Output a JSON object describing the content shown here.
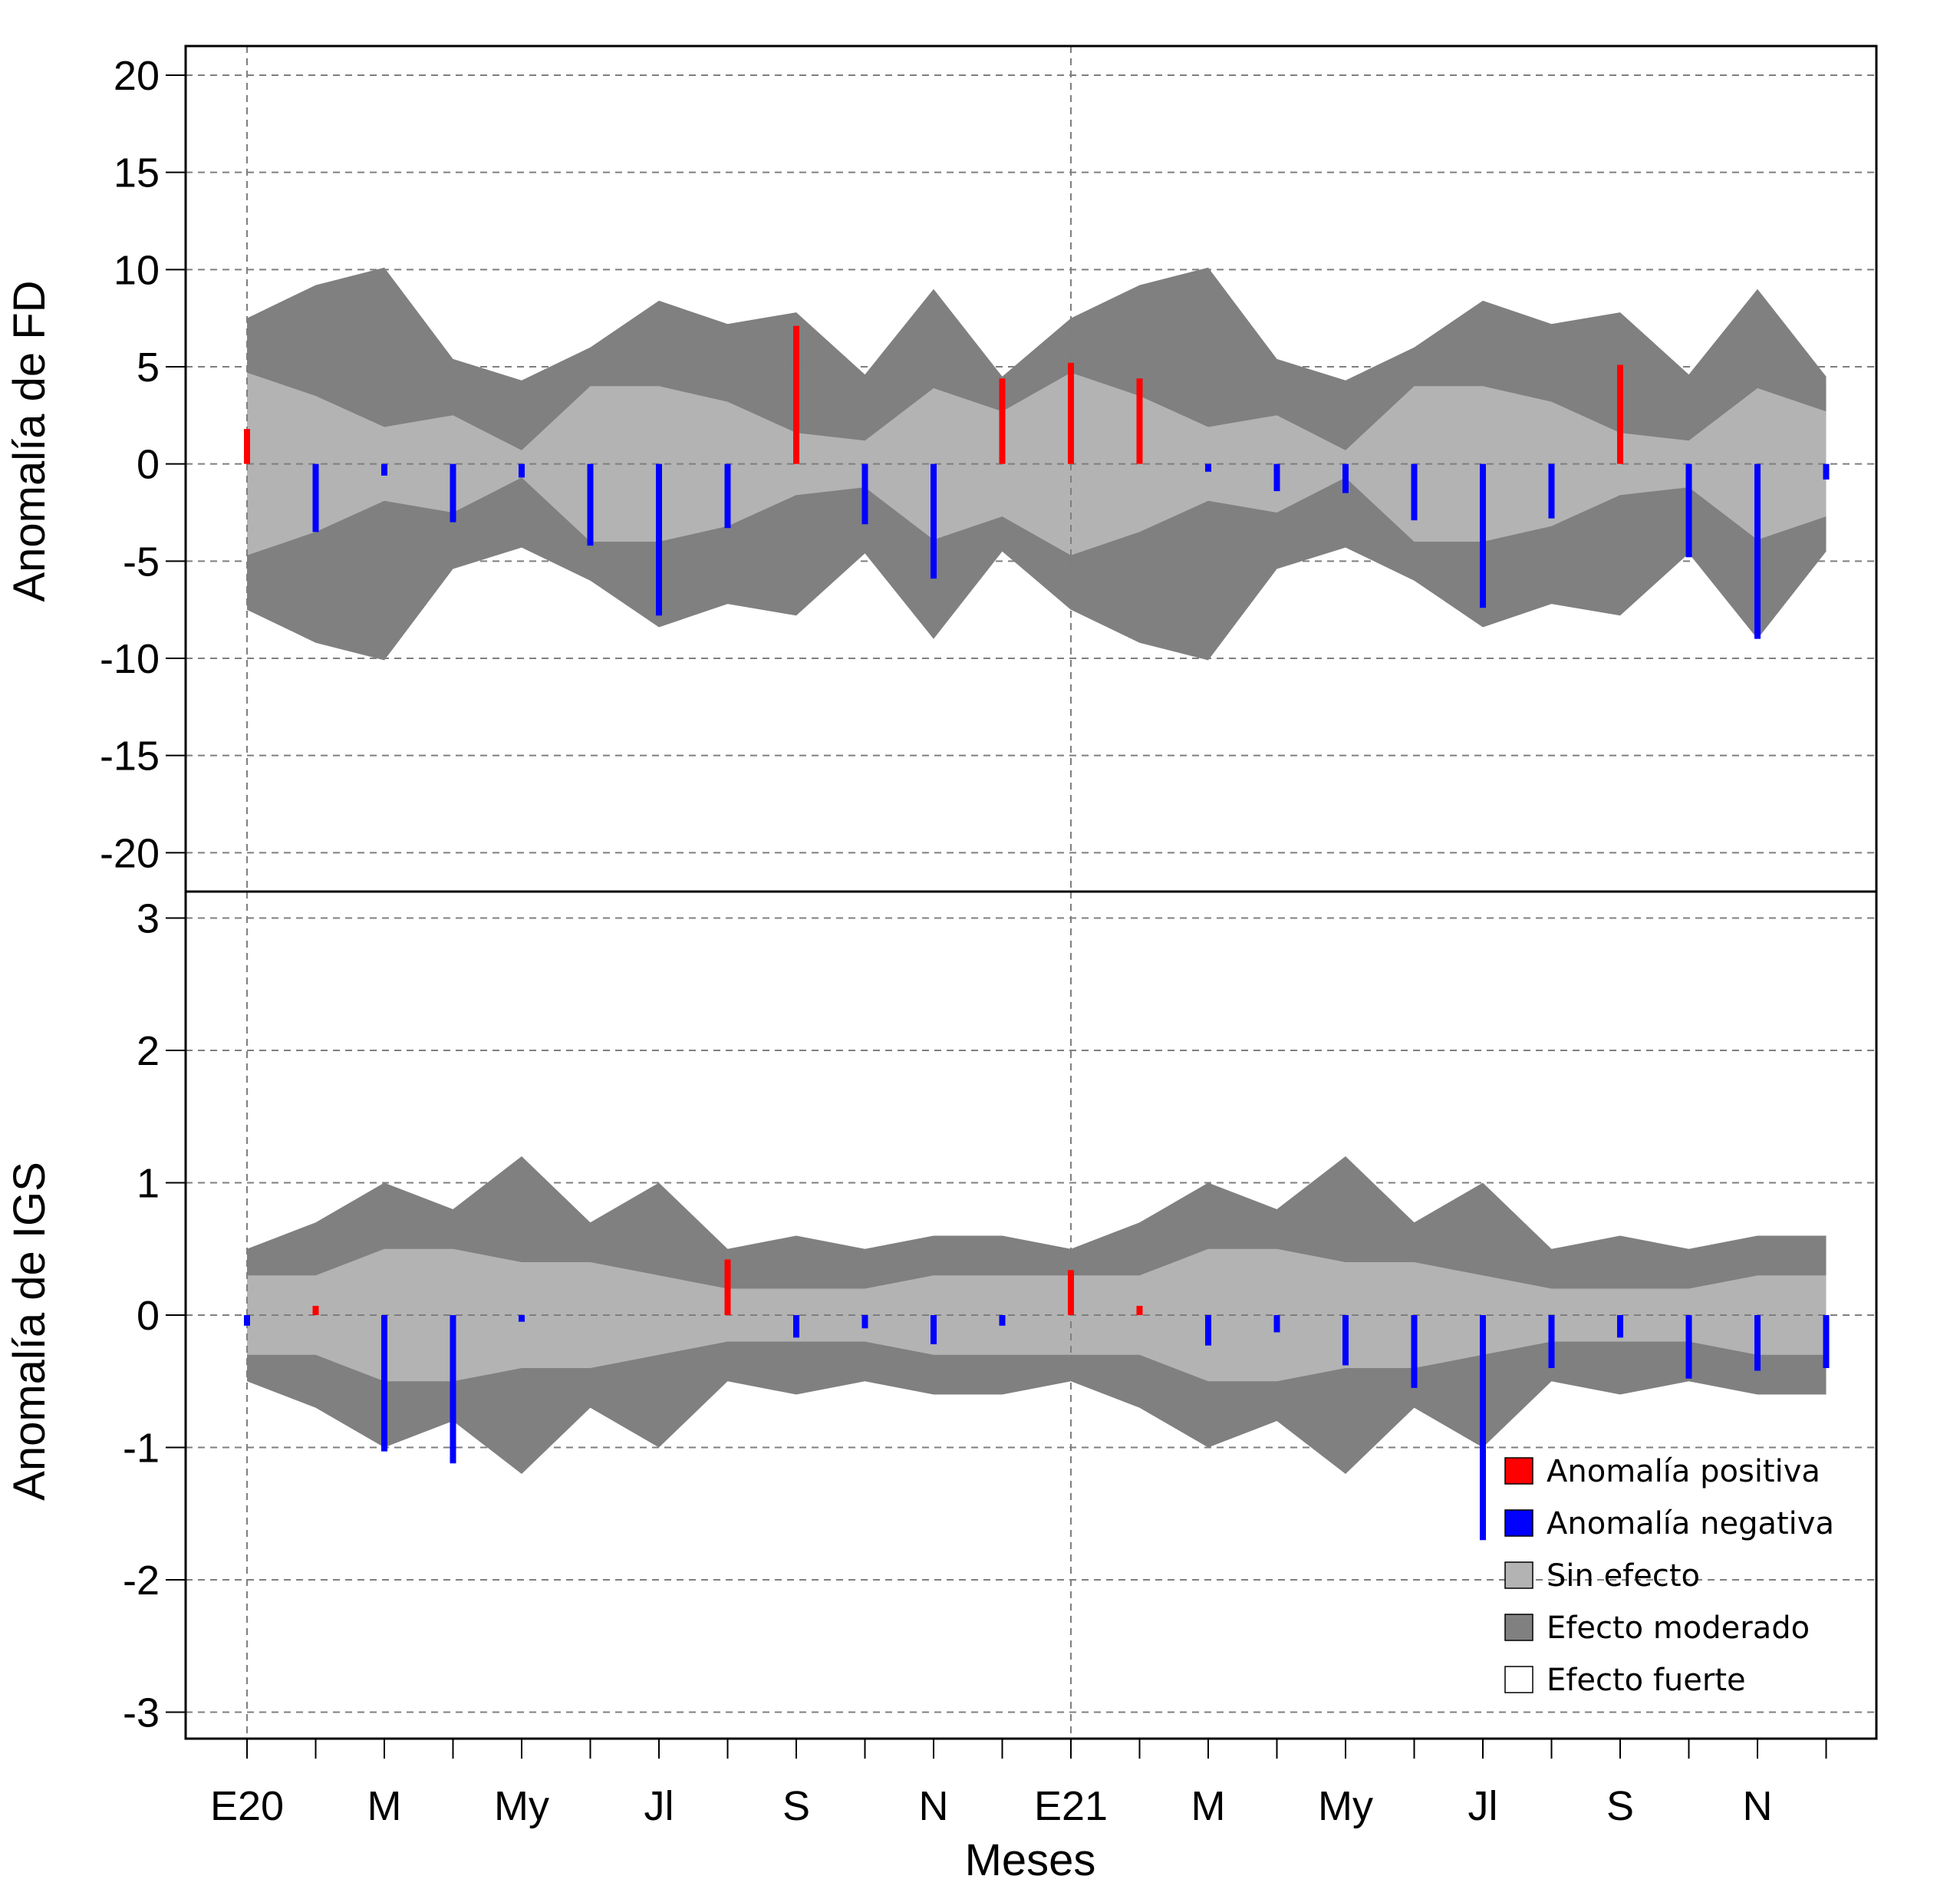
{
  "colors": {
    "positive": "#ff0000",
    "negative": "#0000ff",
    "sin_efecto": "#b3b3b3",
    "efecto_moderado": "#808080",
    "efecto_fuerte": "#ffffff",
    "grid": "#7f7f7f",
    "frame": "#000000"
  },
  "chart_data": [
    {
      "type": "bar",
      "panel": "top",
      "ylabel": "Anomalía de FD",
      "xlabel": "",
      "ylim": [
        -22,
        21.5
      ],
      "yticks": [
        -20,
        -15,
        -10,
        -5,
        0,
        5,
        10,
        15,
        20
      ],
      "ytick_labels": [
        "-20",
        "-15",
        "-10",
        "-5",
        "0",
        "5",
        "10",
        "15",
        "20"
      ],
      "grid": true,
      "n_months": 24,
      "anomaly": [
        1.8,
        -3.5,
        -0.6,
        -3.0,
        -0.7,
        -4.2,
        -7.8,
        -3.3,
        7.1,
        -3.1,
        -5.9,
        4.4,
        5.2,
        4.4,
        -0.4,
        -1.4,
        -1.5,
        -2.9,
        -7.4,
        -2.8,
        5.1,
        -4.8,
        -9.0,
        -0.8
      ],
      "band_sin_efecto": [
        4.7,
        3.5,
        1.9,
        2.5,
        0.7,
        4.0,
        4.0,
        3.2,
        1.6,
        1.2,
        3.9,
        2.7,
        4.7,
        3.5,
        1.9,
        2.5,
        0.7,
        4.0,
        4.0,
        3.2,
        1.6,
        1.2,
        3.9,
        2.7
      ],
      "band_efecto_moderado": [
        7.5,
        9.2,
        10.1,
        5.4,
        4.3,
        6.0,
        8.4,
        7.2,
        7.8,
        4.6,
        9.0,
        4.5,
        7.5,
        9.2,
        10.1,
        5.4,
        4.3,
        6.0,
        8.4,
        7.2,
        7.8,
        4.6,
        9.0,
        4.5
      ]
    },
    {
      "type": "bar",
      "panel": "bottom",
      "ylabel": "Anomalía de IGS",
      "xlabel": "Meses",
      "ylim": [
        -3.2,
        3.2
      ],
      "yticks": [
        -3,
        -2,
        -1,
        0,
        1,
        2,
        3
      ],
      "ytick_labels": [
        "-3",
        "-2",
        "-1",
        "0",
        "1",
        "2",
        "3"
      ],
      "grid": true,
      "n_months": 24,
      "anomaly": [
        -0.08,
        0.07,
        -1.03,
        -1.12,
        -0.05,
        0,
        0,
        0.42,
        -0.17,
        -0.1,
        -0.22,
        -0.08,
        0.34,
        0.07,
        -0.23,
        -0.13,
        -0.38,
        -0.55,
        -1.7,
        -0.4,
        -0.17,
        -0.48,
        -0.42,
        -0.4
      ],
      "band_sin_efecto": [
        0.3,
        0.3,
        0.5,
        0.5,
        0.4,
        0.4,
        0.3,
        0.2,
        0.2,
        0.2,
        0.3,
        0.3,
        0.3,
        0.3,
        0.5,
        0.5,
        0.4,
        0.4,
        0.3,
        0.2,
        0.2,
        0.2,
        0.3,
        0.3
      ],
      "band_efecto_moderado": [
        0.5,
        0.7,
        1.0,
        0.8,
        1.2,
        0.7,
        1.0,
        0.5,
        0.6,
        0.5,
        0.6,
        0.6,
        0.5,
        0.7,
        1.0,
        0.8,
        1.2,
        0.7,
        1.0,
        0.5,
        0.6,
        0.5,
        0.6,
        0.6
      ],
      "xtick_labels": [
        "E20",
        "M",
        "My",
        "Jl",
        "S",
        "N",
        "E21",
        "M",
        "My",
        "Jl",
        "S",
        "N"
      ],
      "xtick_label_months": [
        0,
        2,
        4,
        6,
        8,
        10,
        12,
        14,
        16,
        18,
        20,
        22
      ],
      "vertical_gridlines_at_months": [
        0,
        12
      ]
    }
  ],
  "legend": {
    "position": "bottom-right of lower panel",
    "items": [
      {
        "label": "Anomalía positiva",
        "color_key": "positive"
      },
      {
        "label": "Anomalía negativa",
        "color_key": "negative"
      },
      {
        "label": "Sin efecto",
        "color_key": "sin_efecto"
      },
      {
        "label": "Efecto moderado",
        "color_key": "efecto_moderado"
      },
      {
        "label": "Efecto fuerte",
        "color_key": "efecto_fuerte"
      }
    ]
  }
}
